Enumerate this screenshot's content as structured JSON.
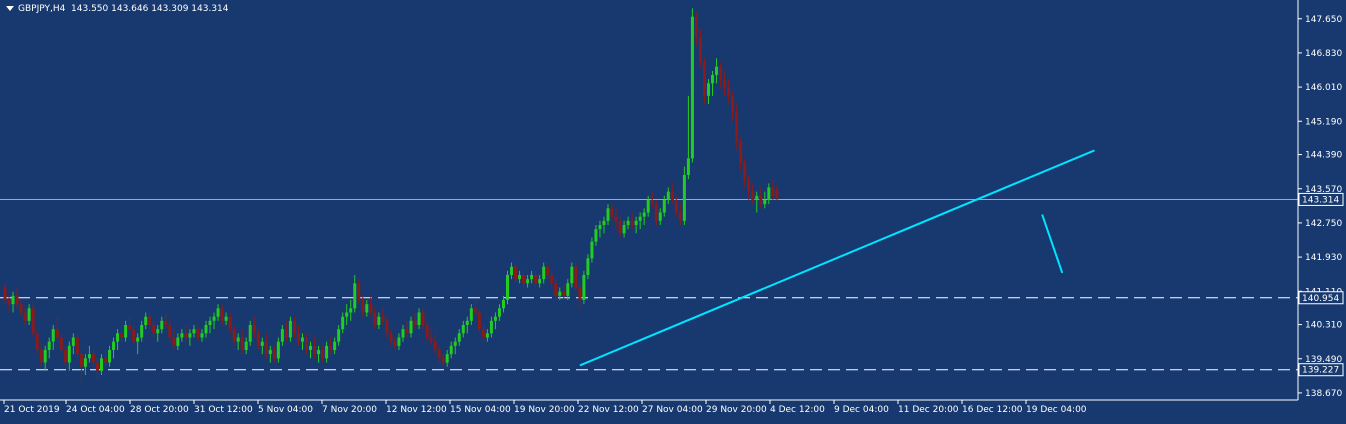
{
  "header": {
    "symbol": "GBPJPY,H4",
    "ohlc": "143.550 143.646 143.309 143.314"
  },
  "chart_data": {
    "type": "candlestick",
    "symbol": "GBPJPY",
    "timeframe": "H4",
    "last_price": 143.314,
    "y_axis_ticks": [
      "147.650",
      "146.830",
      "146.010",
      "145.190",
      "144.390",
      "143.570",
      "142.750",
      "141.930",
      "141.110",
      "140.310",
      "139.490",
      "138.670"
    ],
    "x_axis_labels": [
      "21 Oct 2019",
      "24 Oct 04:00",
      "28 Oct 20:00",
      "31 Oct 12:00",
      "5 Nov 04:00",
      "7 Nov 20:00",
      "12 Nov 12:00",
      "15 Nov 04:00",
      "19 Nov 20:00",
      "22 Nov 12:00",
      "27 Nov 04:00",
      "29 Nov 20:00",
      "4 Dec 12:00",
      "9 Dec 04:00",
      "11 Dec 20:00",
      "16 Dec 12:00",
      "19 Dec 04:00"
    ],
    "ylim": [
      138.5,
      148.1
    ],
    "horizontal_levels": [
      {
        "label": "140.954",
        "value": 140.954,
        "style": "dashed"
      },
      {
        "label": "139.227",
        "value": 139.227,
        "style": "dashed"
      }
    ],
    "current_price_label": "143.314",
    "trendline": {
      "start": {
        "bar": 143,
        "price": 139.33
      },
      "end": {
        "bar": 271,
        "price": 144.49
      },
      "color": "#00e5ff"
    },
    "projection_line": {
      "start": {
        "bar": 258,
        "price": 142.95
      },
      "end": {
        "bar": 263,
        "price": 141.55
      },
      "color": "#00e5ff"
    },
    "colors": {
      "background": "#17396f",
      "bull": "#22cc22",
      "bear": "#8b1a1a",
      "axis": "#ffffff",
      "grid_line": "#ffffff"
    },
    "candles": [
      [
        141.2,
        141.3,
        140.8,
        140.9
      ],
      [
        140.9,
        141.0,
        140.6,
        140.8
      ],
      [
        140.8,
        141.1,
        140.6,
        141.0
      ],
      [
        141.0,
        141.2,
        140.7,
        140.8
      ],
      [
        140.8,
        140.9,
        140.5,
        140.6
      ],
      [
        140.6,
        140.7,
        140.3,
        140.4
      ],
      [
        140.4,
        140.8,
        140.3,
        140.7
      ],
      [
        140.7,
        140.8,
        140.0,
        140.1
      ],
      [
        140.1,
        140.2,
        139.6,
        139.7
      ],
      [
        139.7,
        139.9,
        139.3,
        139.4
      ],
      [
        139.4,
        139.8,
        139.2,
        139.7
      ],
      [
        139.7,
        140.0,
        139.5,
        139.9
      ],
      [
        139.9,
        140.3,
        139.7,
        140.2
      ],
      [
        140.2,
        140.5,
        139.9,
        140.0
      ],
      [
        140.0,
        140.1,
        139.6,
        139.7
      ],
      [
        139.7,
        139.8,
        139.3,
        139.4
      ],
      [
        139.4,
        139.9,
        139.2,
        139.8
      ],
      [
        139.8,
        140.1,
        139.6,
        140.0
      ],
      [
        140.0,
        140.1,
        139.5,
        139.6
      ],
      [
        139.6,
        139.7,
        138.9,
        139.3
      ],
      [
        139.3,
        139.6,
        139.1,
        139.5
      ],
      [
        139.5,
        139.8,
        139.4,
        139.6
      ],
      [
        139.6,
        139.7,
        139.3,
        139.4
      ],
      [
        139.4,
        139.5,
        139.0,
        139.2
      ],
      [
        139.2,
        139.6,
        139.1,
        139.5
      ],
      [
        139.5,
        139.7,
        139.3,
        139.4
      ],
      [
        139.4,
        139.8,
        139.3,
        139.7
      ],
      [
        139.7,
        140.0,
        139.5,
        139.9
      ],
      [
        139.9,
        140.2,
        139.7,
        140.1
      ],
      [
        140.1,
        140.3,
        139.9,
        140.0
      ],
      [
        140.0,
        140.4,
        139.9,
        140.3
      ],
      [
        140.3,
        140.5,
        140.1,
        140.2
      ],
      [
        140.2,
        140.3,
        139.8,
        139.9
      ],
      [
        139.9,
        140.1,
        139.6,
        140.0
      ],
      [
        140.0,
        140.4,
        139.9,
        140.3
      ],
      [
        140.3,
        140.6,
        140.2,
        140.5
      ],
      [
        140.5,
        140.6,
        140.2,
        140.3
      ],
      [
        140.3,
        140.4,
        140.0,
        140.1
      ],
      [
        140.1,
        140.3,
        139.9,
        140.2
      ],
      [
        140.2,
        140.5,
        140.1,
        140.4
      ],
      [
        140.4,
        140.6,
        140.2,
        140.3
      ],
      [
        140.3,
        140.4,
        139.9,
        140.0
      ],
      [
        140.0,
        140.2,
        139.7,
        139.8
      ],
      [
        139.8,
        140.1,
        139.7,
        140.0
      ],
      [
        140.0,
        140.2,
        139.9,
        140.1
      ],
      [
        140.1,
        140.3,
        139.9,
        140.0
      ],
      [
        140.0,
        140.2,
        139.8,
        140.1
      ],
      [
        140.1,
        140.3,
        140.0,
        140.2
      ],
      [
        140.2,
        140.3,
        139.9,
        140.0
      ],
      [
        140.0,
        140.2,
        139.9,
        140.1
      ],
      [
        140.1,
        140.4,
        140.0,
        140.3
      ],
      [
        140.3,
        140.5,
        140.1,
        140.4
      ],
      [
        140.4,
        140.6,
        140.2,
        140.5
      ],
      [
        140.5,
        140.8,
        140.4,
        140.7
      ],
      [
        140.7,
        140.8,
        140.3,
        140.4
      ],
      [
        140.4,
        140.6,
        140.3,
        140.5
      ],
      [
        140.5,
        140.6,
        140.1,
        140.2
      ],
      [
        140.2,
        140.3,
        139.8,
        139.9
      ],
      [
        139.9,
        140.1,
        139.7,
        140.0
      ],
      [
        140.0,
        140.2,
        139.6,
        139.7
      ],
      [
        139.7,
        140.0,
        139.6,
        139.9
      ],
      [
        139.9,
        140.4,
        139.8,
        140.3
      ],
      [
        140.3,
        140.5,
        140.0,
        140.1
      ],
      [
        140.1,
        140.2,
        139.7,
        139.8
      ],
      [
        139.8,
        140.0,
        139.6,
        139.9
      ],
      [
        139.9,
        140.1,
        139.5,
        139.6
      ],
      [
        139.6,
        139.8,
        139.4,
        139.7
      ],
      [
        139.7,
        139.8,
        139.4,
        139.5
      ],
      [
        139.5,
        140.0,
        139.4,
        139.9
      ],
      [
        139.9,
        140.3,
        139.8,
        140.2
      ],
      [
        140.2,
        140.4,
        139.9,
        140.0
      ],
      [
        140.0,
        140.5,
        139.9,
        140.4
      ],
      [
        140.4,
        140.5,
        140.0,
        140.1
      ],
      [
        140.1,
        140.3,
        139.8,
        139.9
      ],
      [
        139.9,
        140.1,
        139.7,
        140.0
      ],
      [
        140.0,
        140.1,
        139.6,
        139.7
      ],
      [
        139.7,
        139.9,
        139.5,
        139.8
      ],
      [
        139.8,
        140.0,
        139.5,
        139.6
      ],
      [
        139.6,
        139.8,
        139.4,
        139.7
      ],
      [
        139.7,
        139.8,
        139.4,
        139.5
      ],
      [
        139.5,
        139.9,
        139.4,
        139.8
      ],
      [
        139.8,
        140.0,
        139.6,
        139.7
      ],
      [
        139.7,
        140.0,
        139.6,
        139.9
      ],
      [
        139.9,
        140.3,
        139.8,
        140.2
      ],
      [
        140.2,
        140.6,
        140.1,
        140.5
      ],
      [
        140.5,
        140.8,
        140.3,
        140.6
      ],
      [
        140.6,
        140.9,
        140.4,
        140.7
      ],
      [
        140.7,
        141.5,
        140.6,
        141.3
      ],
      [
        141.3,
        141.4,
        140.8,
        140.9
      ],
      [
        140.9,
        141.0,
        140.5,
        140.6
      ],
      [
        140.6,
        140.9,
        140.5,
        140.8
      ],
      [
        140.8,
        141.0,
        140.5,
        140.6
      ],
      [
        140.6,
        140.7,
        140.2,
        140.3
      ],
      [
        140.3,
        140.6,
        140.2,
        140.5
      ],
      [
        140.5,
        140.7,
        140.3,
        140.4
      ],
      [
        140.4,
        140.5,
        140.0,
        140.1
      ],
      [
        140.1,
        140.2,
        139.8,
        139.9
      ],
      [
        139.9,
        140.0,
        139.7,
        139.8
      ],
      [
        139.8,
        140.1,
        139.7,
        140.0
      ],
      [
        140.0,
        140.3,
        139.9,
        140.2
      ],
      [
        140.2,
        140.4,
        140.0,
        140.1
      ],
      [
        140.1,
        140.5,
        140.0,
        140.4
      ],
      [
        140.4,
        140.6,
        140.2,
        140.3
      ],
      [
        140.3,
        140.7,
        140.2,
        140.6
      ],
      [
        140.6,
        140.7,
        140.2,
        140.3
      ],
      [
        140.3,
        140.4,
        139.9,
        140.0
      ],
      [
        140.0,
        140.2,
        139.8,
        139.9
      ],
      [
        139.9,
        140.1,
        139.6,
        139.7
      ],
      [
        139.7,
        139.8,
        139.4,
        139.5
      ],
      [
        139.5,
        139.6,
        139.3,
        139.4
      ],
      [
        139.4,
        139.7,
        139.3,
        139.6
      ],
      [
        139.6,
        139.9,
        139.5,
        139.8
      ],
      [
        139.8,
        140.0,
        139.6,
        139.9
      ],
      [
        139.9,
        140.2,
        139.8,
        140.1
      ],
      [
        140.1,
        140.4,
        140.0,
        140.3
      ],
      [
        140.3,
        140.5,
        140.1,
        140.4
      ],
      [
        140.4,
        140.8,
        140.3,
        140.7
      ],
      [
        140.7,
        140.9,
        140.5,
        140.6
      ],
      [
        140.6,
        140.7,
        140.1,
        140.2
      ],
      [
        140.2,
        140.3,
        139.9,
        140.0
      ],
      [
        140.0,
        140.2,
        139.9,
        140.1
      ],
      [
        140.1,
        140.5,
        140.0,
        140.4
      ],
      [
        140.4,
        140.6,
        140.2,
        140.5
      ],
      [
        140.5,
        140.8,
        140.4,
        140.7
      ],
      [
        140.7,
        141.0,
        140.6,
        140.9
      ],
      [
        140.9,
        141.6,
        140.8,
        141.5
      ],
      [
        141.5,
        141.8,
        141.4,
        141.7
      ],
      [
        141.7,
        141.8,
        141.3,
        141.4
      ],
      [
        141.4,
        141.6,
        141.3,
        141.5
      ],
      [
        141.5,
        141.6,
        141.2,
        141.3
      ],
      [
        141.3,
        141.5,
        141.2,
        141.4
      ],
      [
        141.4,
        141.6,
        141.3,
        141.5
      ],
      [
        141.5,
        141.6,
        141.2,
        141.3
      ],
      [
        141.3,
        141.5,
        141.2,
        141.4
      ],
      [
        141.4,
        141.8,
        141.3,
        141.7
      ],
      [
        141.7,
        141.8,
        141.4,
        141.5
      ],
      [
        141.5,
        141.6,
        141.2,
        141.3
      ],
      [
        141.3,
        141.4,
        140.9,
        141.0
      ],
      [
        141.0,
        141.2,
        140.9,
        141.1
      ],
      [
        141.1,
        141.3,
        140.9,
        141.0
      ],
      [
        141.0,
        141.4,
        140.9,
        141.3
      ],
      [
        141.3,
        141.8,
        141.2,
        141.7
      ],
      [
        141.7,
        141.8,
        141.1,
        141.2
      ],
      [
        141.2,
        141.3,
        140.7,
        140.9
      ],
      [
        140.9,
        141.6,
        140.8,
        141.5
      ],
      [
        141.5,
        142.0,
        141.4,
        141.9
      ],
      [
        141.9,
        142.4,
        141.8,
        142.3
      ],
      [
        142.3,
        142.7,
        142.2,
        142.6
      ],
      [
        142.6,
        142.8,
        142.4,
        142.7
      ],
      [
        142.7,
        142.9,
        142.5,
        142.8
      ],
      [
        142.8,
        143.2,
        142.7,
        143.1
      ],
      [
        143.1,
        143.2,
        142.8,
        142.9
      ],
      [
        142.9,
        143.1,
        142.6,
        142.8
      ],
      [
        142.8,
        142.9,
        142.4,
        142.5
      ],
      [
        142.5,
        142.8,
        142.4,
        142.7
      ],
      [
        142.7,
        142.9,
        142.6,
        142.8
      ],
      [
        142.8,
        143.0,
        142.6,
        142.7
      ],
      [
        142.7,
        142.9,
        142.5,
        142.8
      ],
      [
        142.8,
        143.0,
        142.6,
        142.9
      ],
      [
        142.9,
        143.1,
        142.7,
        143.0
      ],
      [
        143.0,
        143.4,
        142.9,
        143.3
      ],
      [
        143.3,
        143.5,
        143.1,
        143.2
      ],
      [
        143.2,
        143.3,
        142.7,
        142.8
      ],
      [
        142.8,
        143.1,
        142.7,
        143.0
      ],
      [
        143.0,
        143.4,
        142.9,
        143.3
      ],
      [
        143.3,
        143.6,
        143.2,
        143.5
      ],
      [
        143.5,
        143.7,
        143.2,
        143.3
      ],
      [
        143.3,
        143.4,
        142.9,
        143.0
      ],
      [
        143.0,
        143.2,
        142.7,
        142.8
      ],
      [
        142.8,
        144.1,
        142.7,
        143.9
      ],
      [
        143.9,
        145.8,
        143.8,
        144.3
      ],
      [
        144.3,
        147.9,
        144.2,
        147.7
      ],
      [
        147.7,
        147.8,
        147.0,
        147.2
      ],
      [
        147.2,
        147.4,
        146.5,
        146.6
      ],
      [
        146.6,
        146.7,
        145.6,
        145.8
      ],
      [
        145.8,
        146.2,
        145.6,
        146.1
      ],
      [
        146.1,
        146.4,
        145.8,
        146.3
      ],
      [
        146.3,
        146.7,
        146.1,
        146.5
      ],
      [
        146.5,
        146.6,
        146.0,
        146.2
      ],
      [
        146.2,
        146.4,
        145.8,
        146.0
      ],
      [
        146.0,
        146.2,
        145.6,
        145.8
      ],
      [
        145.8,
        145.9,
        145.2,
        145.4
      ],
      [
        145.4,
        145.6,
        144.5,
        144.7
      ],
      [
        144.7,
        144.8,
        144.0,
        144.2
      ],
      [
        144.2,
        144.3,
        143.6,
        143.8
      ],
      [
        143.8,
        143.9,
        143.3,
        143.5
      ],
      [
        143.5,
        143.7,
        143.2,
        143.3
      ],
      [
        143.3,
        143.5,
        143.0,
        143.4
      ],
      [
        143.4,
        143.6,
        143.1,
        143.2
      ],
      [
        143.2,
        143.5,
        143.1,
        143.3
      ],
      [
        143.3,
        143.7,
        143.2,
        143.6
      ],
      [
        143.6,
        143.8,
        143.3,
        143.4
      ],
      [
        143.55,
        143.65,
        143.31,
        143.314
      ]
    ]
  }
}
